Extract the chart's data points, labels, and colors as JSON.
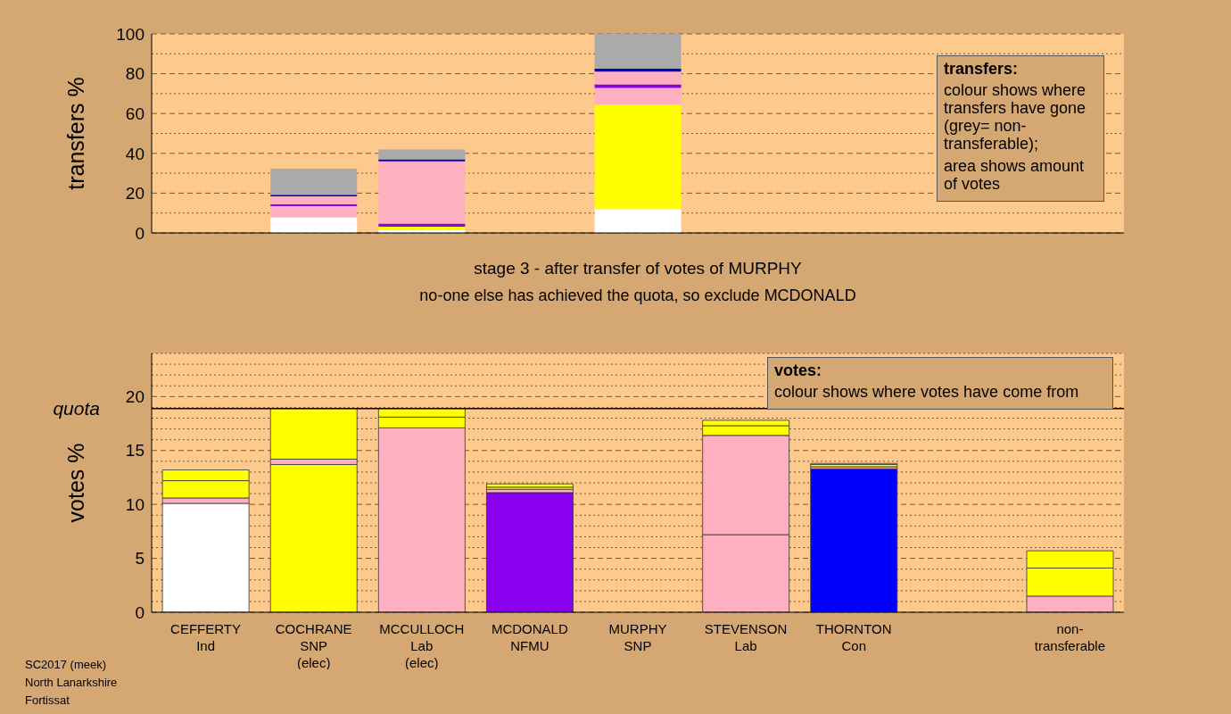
{
  "chart_data": [
    {
      "type": "bar",
      "ylabel": "transfers %",
      "stacked": true,
      "grid": "y",
      "tick_labels": "y",
      "categories": [
        null,
        null,
        null,
        null,
        null,
        null,
        null,
        null,
        null
      ],
      "ylim": [
        0,
        100
      ],
      "yticks": [
        0,
        {
          "value": 10,
          "label": null
        },
        20,
        {
          "value": 30,
          "label": null
        },
        40,
        {
          "value": 50,
          "label": null
        },
        60,
        {
          "value": 70,
          "label": null
        },
        80,
        {
          "value": 90,
          "label": null
        },
        100
      ],
      "series": [
        {
          "color": "#ffffff",
          "values": [
            null,
            7.8,
            1.5,
            null,
            12.0,
            null,
            null,
            null,
            null
          ]
        },
        {
          "color": "#ffff00",
          "values": [
            null,
            null,
            1.6,
            null,
            52.5,
            null,
            null,
            null,
            null
          ]
        },
        {
          "color": "#ffb0c0",
          "values": [
            null,
            5.7,
            null,
            null,
            8.4,
            null,
            null,
            null,
            null
          ]
        },
        {
          "color": "#8800ee",
          "values": [
            null,
            0.8,
            1.6,
            null,
            1.8,
            null,
            null,
            null,
            null
          ]
        },
        {
          "color": "#ffb0c0",
          "values": [
            null,
            4.1,
            31.3,
            null,
            6.4,
            null,
            null,
            null,
            null
          ]
        },
        {
          "color": "#0000cc",
          "values": [
            null,
            0.8,
            1.0,
            null,
            1.4,
            null,
            null,
            null,
            null
          ]
        },
        {
          "color": "#aaaaaa",
          "values": [
            null,
            13.1,
            4.9,
            null,
            17.5,
            null,
            null,
            null,
            null
          ]
        }
      ],
      "annotations": [
        "transfers:",
        "colour shows where transfers have gone (grey= non-transferable);",
        "area shows amount of votes"
      ]
    },
    {
      "type": "bar",
      "title": "stage 3 - after transfer of votes of MURPHY",
      "subtitle": "no-one else has achieved the quota, so exclude MCDONALD",
      "ylabel": "votes %",
      "stacked": true,
      "grid": "y",
      "categories": [
        "CEFFERTY\nInd",
        "COCHRANE\nSNP\n(elec)",
        "MCCULLOCH\nLab\n(elec)",
        "MCDONALD\nNFMU",
        "MURPHY\nSNP",
        "STEVENSON\nLab",
        "THORNTON\nCon",
        null,
        "non-\ntransferable"
      ],
      "ylim": [
        0,
        24
      ],
      "yticks": [
        0,
        {
          "value": 1,
          "label": null
        },
        {
          "value": 2,
          "label": null
        },
        {
          "value": 3,
          "label": null
        },
        {
          "value": 4,
          "label": null
        },
        5,
        {
          "value": 6,
          "label": null
        },
        {
          "value": 7,
          "label": null
        },
        {
          "value": 8,
          "label": null
        },
        {
          "value": 9,
          "label": null
        },
        10,
        {
          "value": 11,
          "label": null
        },
        {
          "value": 12,
          "label": null
        },
        {
          "value": 13,
          "label": null
        },
        {
          "value": 14,
          "label": null
        },
        15,
        {
          "value": 16,
          "label": null
        },
        {
          "value": 17,
          "label": null
        },
        {
          "value": 18,
          "label": null
        },
        {
          "value": 19,
          "label": null
        },
        20,
        {
          "value": 21,
          "label": null
        },
        {
          "value": 22,
          "label": null
        },
        {
          "value": 23,
          "label": null
        },
        {
          "value": 24,
          "label": null
        }
      ],
      "series": [
        {
          "colors": [
            "#ffffff",
            "#ffff00",
            "#ffb0c0",
            "#8800ee",
            "#ffffff",
            "#ffb0c0",
            "#0000ff",
            null,
            "#ffb0c0"
          ],
          "values": [
            10.1,
            13.7,
            17.1,
            11.1,
            0,
            7.2,
            13.3,
            null,
            1.5
          ]
        },
        {
          "colors": [
            "#ffb0c0",
            "#ffb0c0",
            "#ffff00",
            "#ffb0c0",
            null,
            "#ffb0c0",
            "#ffb0c0",
            null,
            "#ffff00"
          ],
          "values": [
            0.5,
            0.5,
            1.0,
            0.3,
            null,
            9.2,
            0.2,
            null,
            2.6
          ]
        },
        {
          "colors": [
            "#ffff00",
            "#ffff00",
            "#ffff00",
            "#ffff00",
            null,
            "#ffff00",
            "#ffff00",
            null,
            "#ffff00"
          ],
          "values": [
            1.6,
            4.7,
            0.8,
            0.2,
            null,
            0.9,
            0.2,
            null,
            1.6
          ]
        },
        {
          "colors": [
            "#ffff00",
            null,
            null,
            "#ffff00",
            null,
            "#ffff00",
            "#ffff00",
            null,
            null
          ],
          "values": [
            1.0,
            null,
            null,
            0.3,
            null,
            0.5,
            0.1,
            null,
            null
          ]
        }
      ],
      "ref_lines": [
        {
          "axis": "y",
          "value": 18.9,
          "label": "quota",
          "color": "#000000"
        }
      ],
      "annotations": [
        "votes:",
        "colour shows where votes have come from",
        "SC2017 (meek)",
        "North Lanarkshire",
        "Fortissat"
      ]
    }
  ]
}
